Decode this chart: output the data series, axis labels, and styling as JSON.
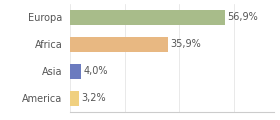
{
  "categories": [
    "Europa",
    "Africa",
    "Asia",
    "America"
  ],
  "values": [
    56.9,
    35.9,
    4.0,
    3.2
  ],
  "bar_colors": [
    "#a8bc8a",
    "#e8b882",
    "#6b7bbf",
    "#f0d080"
  ],
  "labels": [
    "56,9%",
    "35,9%",
    "4,0%",
    "3,2%"
  ],
  "xlim": [
    0,
    75
  ],
  "background_color": "#ffffff",
  "bar_height": 0.55,
  "label_fontsize": 7.0,
  "tick_fontsize": 7.0
}
